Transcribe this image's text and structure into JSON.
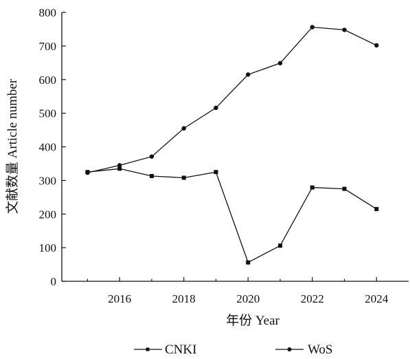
{
  "chart_data": {
    "type": "line",
    "title": "",
    "xlabel": "年份 Year",
    "ylabel": "文献数量 Article number",
    "x": [
      2015,
      2016,
      2017,
      2018,
      2019,
      2020,
      2021,
      2022,
      2023,
      2024
    ],
    "xlim": [
      2014.2,
      2025
    ],
    "ylim": [
      0,
      800
    ],
    "x_ticks": [
      "2016",
      "2018",
      "2020",
      "2022",
      "2024"
    ],
    "y_ticks": [
      "0",
      "100",
      "200",
      "300",
      "400",
      "500",
      "600",
      "700",
      "800"
    ],
    "grid": false,
    "legend_position": "bottom",
    "series": [
      {
        "name": "CNKI",
        "marker": "square",
        "values": [
          325,
          335,
          313,
          308,
          325,
          56,
          106,
          279,
          275,
          215
        ]
      },
      {
        "name": "WoS",
        "marker": "circle",
        "values": [
          323,
          345,
          371,
          455,
          516,
          615,
          649,
          756,
          748,
          702
        ]
      }
    ]
  }
}
